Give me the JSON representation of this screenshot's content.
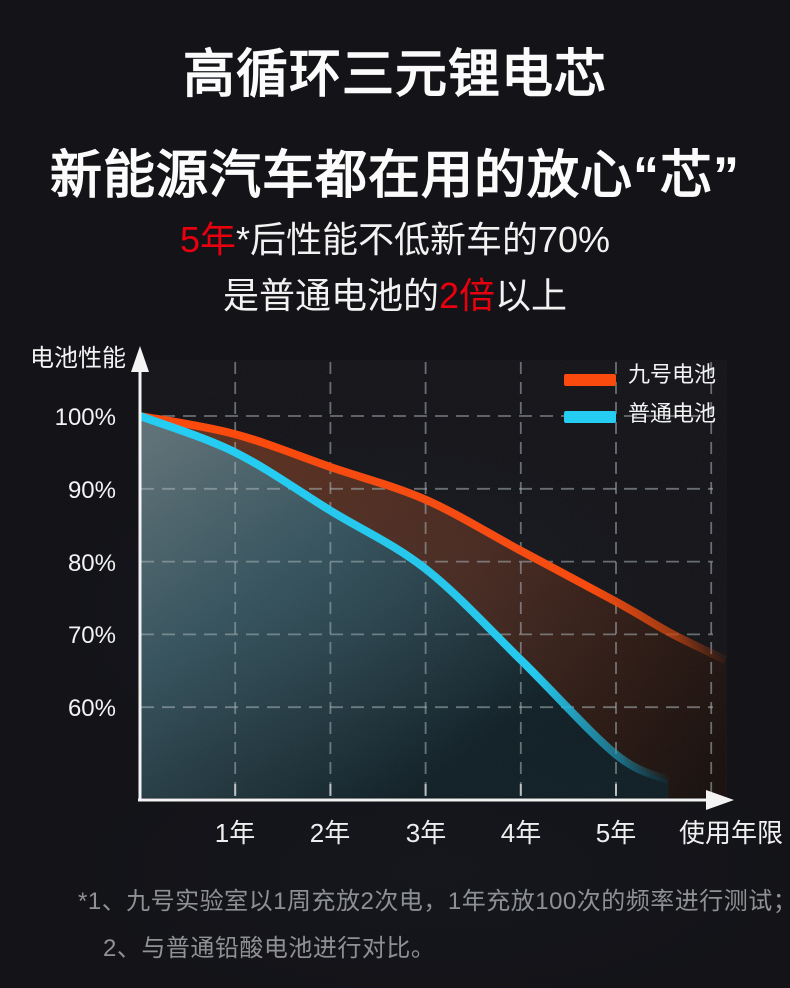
{
  "header": {
    "title_line1": "高循环三元锂电芯",
    "title_line2": "新能源汽车都在用的放心“芯”"
  },
  "claim": {
    "line1_red": "5年",
    "line1_rest": "*后性能不低新车的70%",
    "line2_pre": "是普通电池的",
    "line2_red": "2倍",
    "line2_post": "以上"
  },
  "colors": {
    "accent_red": "#e8000f",
    "ninebot_orange": "#fb4a0d",
    "ordinary_cyan": "#25cdf3",
    "page_bg": "#131318",
    "footnote_gray": "#909294",
    "axis_white": "#f4f4f4",
    "gridline_gray": "#aab6b8"
  },
  "chart_data": {
    "type": "line",
    "ylabel": "电池性能",
    "xlabel": "使用年限",
    "x_unit": "年",
    "x_tick_labels": [
      "1年",
      "2年",
      "3年",
      "4年",
      "5年"
    ],
    "x_ticks": [
      1,
      2,
      3,
      4,
      5
    ],
    "y_tick_labels": [
      "100%",
      "90%",
      "80%",
      "70%",
      "60%"
    ],
    "y_ticks": [
      100,
      90,
      80,
      70,
      60
    ],
    "x_gridlines": [
      1,
      2,
      3,
      4,
      5,
      6
    ],
    "y_gridlines": [
      100,
      90,
      80,
      70,
      60
    ],
    "xlim": [
      0,
      6.3
    ],
    "ylim": [
      47,
      102
    ],
    "grid": "dashed",
    "legend_position": "top-right",
    "series": [
      {
        "name": "九号电池",
        "color": "#fb4a0d",
        "x": [
          0,
          1,
          2,
          3,
          4,
          5,
          5.6,
          6.15
        ],
        "values": [
          100,
          97.5,
          93,
          88.5,
          81.5,
          74.5,
          70,
          66.5
        ]
      },
      {
        "name": "普通电池",
        "color": "#25cdf3",
        "x": [
          0,
          1,
          2,
          3,
          4,
          5,
          5.55
        ],
        "values": [
          100,
          95,
          87,
          79,
          66.5,
          53.5,
          50
        ]
      }
    ]
  },
  "footnotes": [
    "*1、九号实验室以1周充放2次电，1年充放100次的频率进行测试；",
    "2、与普通铅酸电池进行对比。"
  ]
}
